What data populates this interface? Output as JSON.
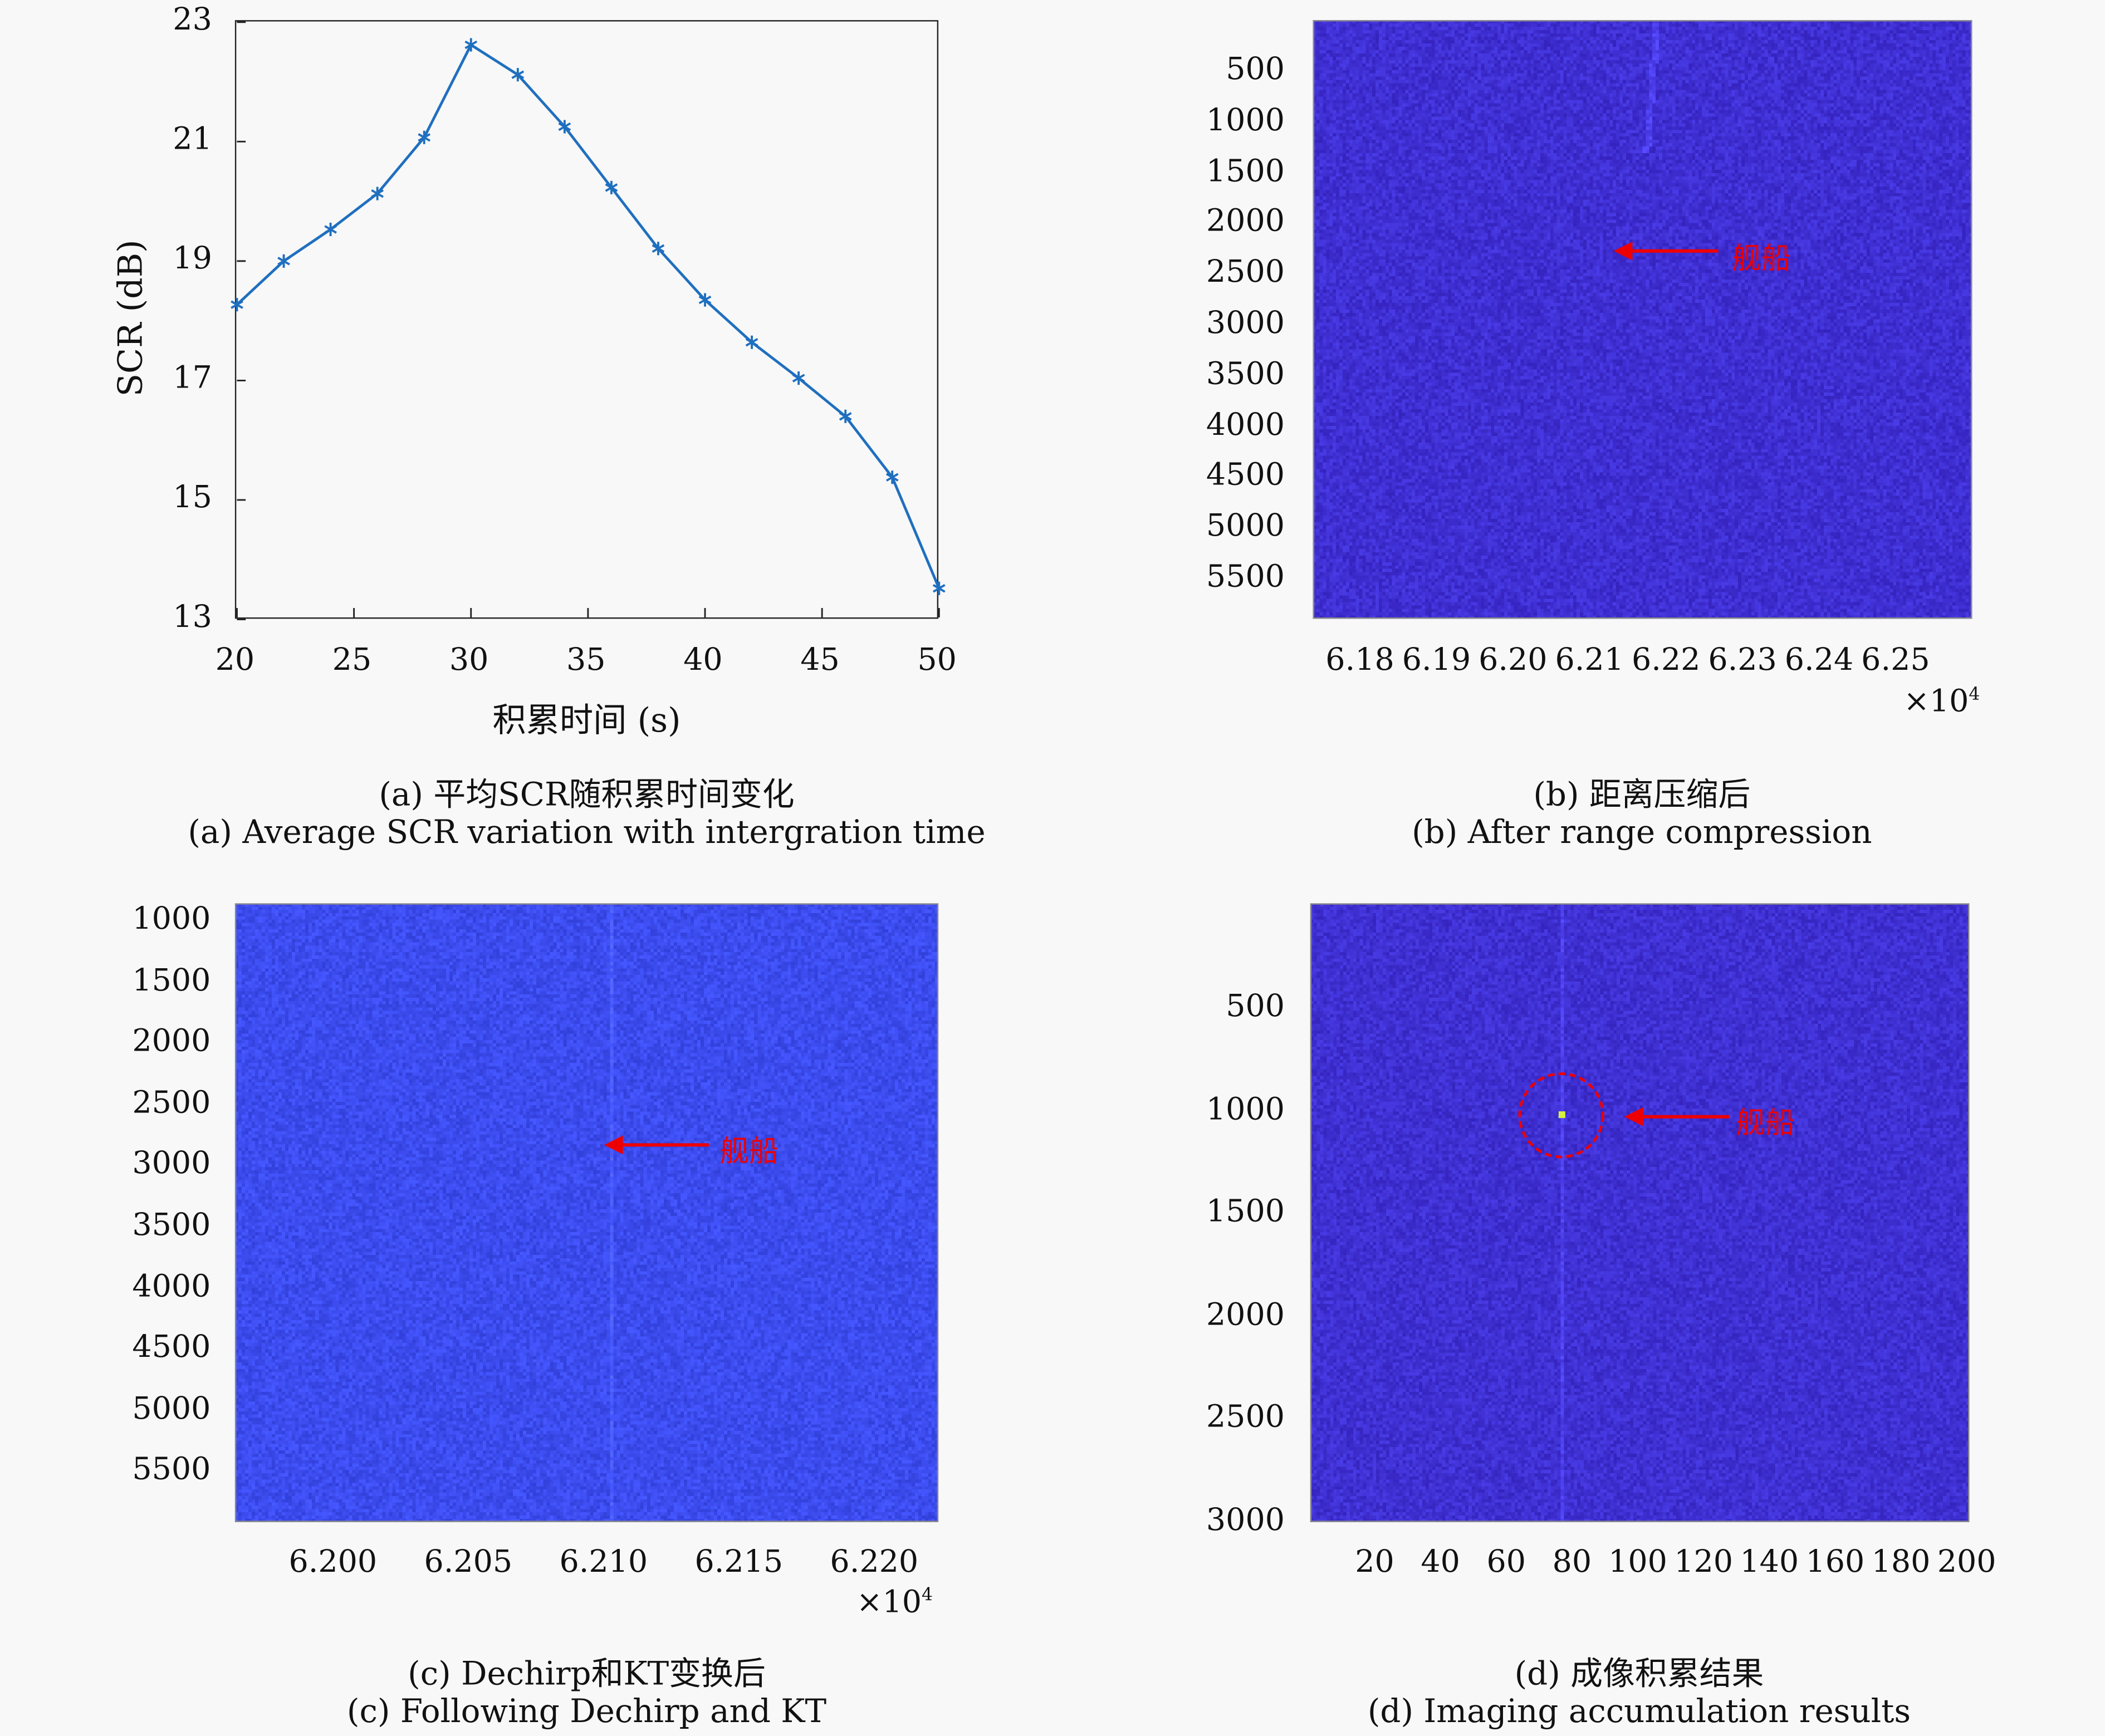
{
  "chart_data": [
    {
      "type": "line",
      "panel": "a",
      "xlabel": "积累时间 (s)",
      "ylabel": "SCR (dB)",
      "xlim": [
        20,
        50
      ],
      "ylim": [
        13,
        23
      ],
      "xticks": [
        20,
        25,
        30,
        35,
        40,
        45,
        50
      ],
      "yticks": [
        13,
        15,
        17,
        19,
        21,
        23
      ],
      "grid": false,
      "marker": "asterisk",
      "color": "#1f6fbf",
      "x": [
        20,
        22,
        24,
        26,
        28,
        30,
        32,
        34,
        36,
        38,
        40,
        42,
        44,
        46,
        48,
        50
      ],
      "y": [
        18.27,
        19.0,
        19.53,
        20.13,
        21.07,
        22.62,
        22.12,
        21.25,
        20.23,
        19.21,
        18.35,
        17.64,
        17.04,
        16.4,
        15.38,
        13.52
      ],
      "caption_cn": "(a) 平均SCR随积累时间变化",
      "caption_en": "(a) Average SCR variation with intergration time"
    },
    {
      "type": "heatmap",
      "panel": "b",
      "yticks": [
        "500",
        "1000",
        "1500",
        "2000",
        "2500",
        "3000",
        "3500",
        "4000",
        "4500",
        "5000",
        "5500"
      ],
      "xticks": [
        "6.18",
        "6.19",
        "6.20",
        "6.21",
        "6.22",
        "6.23",
        "6.24",
        "6.25"
      ],
      "xexp": "×10",
      "xexp_power": "4",
      "annotation": "舰船",
      "base_color": "#3f2fd2",
      "caption_cn": "(b) 距离压缩后",
      "caption_en": "(b) After range compression"
    },
    {
      "type": "heatmap",
      "panel": "c",
      "yticks": [
        "1000",
        "1500",
        "2000",
        "2500",
        "3000",
        "3500",
        "4000",
        "4500",
        "5000",
        "5500"
      ],
      "xticks": [
        "6.200",
        "6.205",
        "6.210",
        "6.215",
        "6.220"
      ],
      "xexp": "×10",
      "xexp_power": "4",
      "annotation": "舰船",
      "base_color": "#3c4cee",
      "caption_cn": "(c) Dechirp和KT变换后",
      "caption_en": "(c) Following Dechirp and KT"
    },
    {
      "type": "heatmap",
      "panel": "d",
      "yticks": [
        "500",
        "1000",
        "1500",
        "2000",
        "2500",
        "3000"
      ],
      "xticks": [
        "20",
        "40",
        "60",
        "80",
        "100",
        "120",
        "140",
        "160",
        "180",
        "200"
      ],
      "annotation": "舰船",
      "base_color": "#3f30d2",
      "caption_cn": "(d) 成像积累结果",
      "caption_en": "(d) Imaging accumulation results"
    }
  ]
}
